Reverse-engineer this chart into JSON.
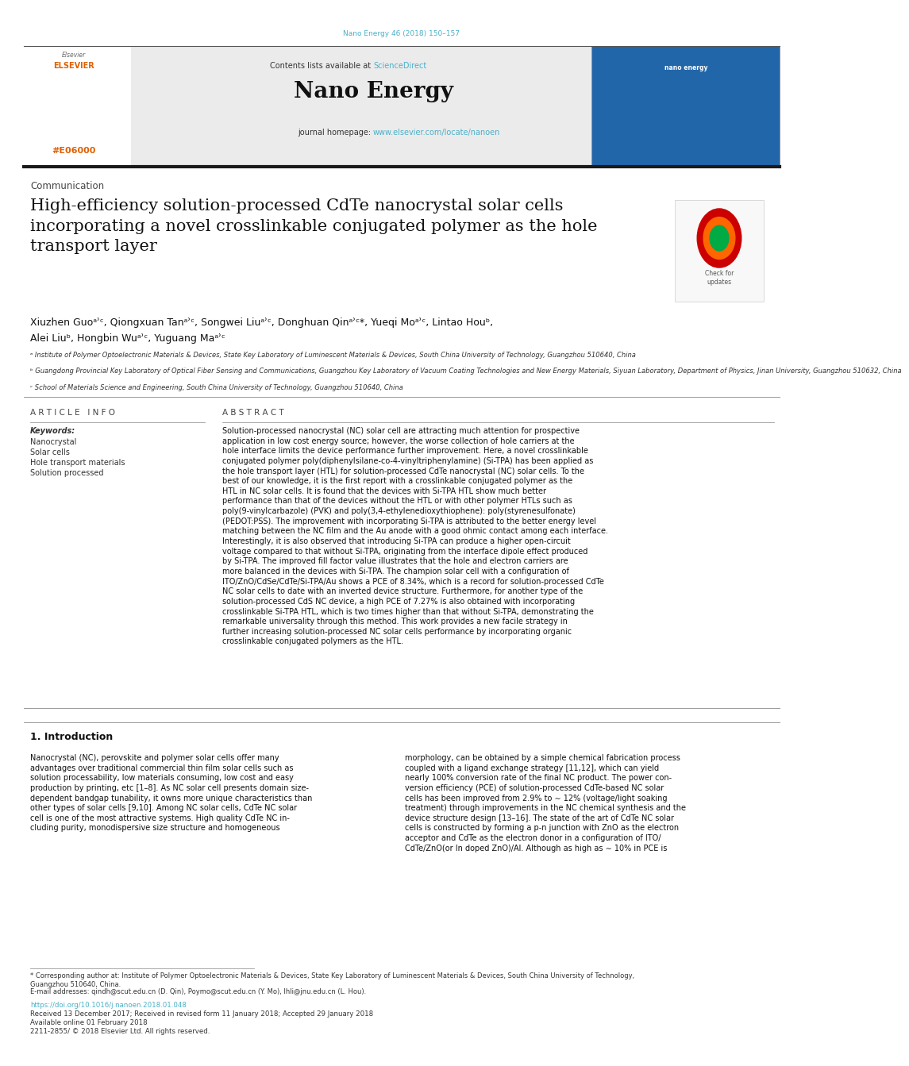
{
  "page_width": 9.92,
  "page_height": 13.23,
  "bg_color": "#ffffff",
  "header_citation": "Nano Energy 46 (2018) 150–157",
  "header_citation_color": "#4ab0c8",
  "journal_name": "Nano Energy",
  "contents_text": "Contents lists available at ",
  "sciencedirect_text": "ScienceDirect",
  "sciencedirect_color": "#4ab0c8",
  "journal_homepage_text": "journal homepage: ",
  "journal_url": "www.elsevier.com/locate/nanoen",
  "journal_url_color": "#4ab0c8",
  "elsevier_color": "#E06000",
  "section_label": "Communication",
  "title": "High-efficiency solution-processed CdTe nanocrystal solar cells\nincorporating a novel crosslinkable conjugated polymer as the hole\ntransport layer",
  "authors_line1": "Xiuzhen Guoᵃʾᶜ, Qiongxuan Tanᵃʾᶜ, Songwei Liuᵃʾᶜ, Donghuan Qinᵃʾᶜ*, Yueqi Moᵃʾᶜ, Lintao Houᵇ,",
  "authors_line2": "Alei Liuᵇ, Hongbin Wuᵃʾᶜ, Yuguang Maᵃʾᶜ",
  "affiliation_a": "ᵃ Institute of Polymer Optoelectronic Materials & Devices, State Key Laboratory of Luminescent Materials & Devices, South China University of Technology, Guangzhou 510640, China",
  "affiliation_b": "ᵇ Guangdong Provincial Key Laboratory of Optical Fiber Sensing and Communications, Guangzhou Key Laboratory of Vacuum Coating Technologies and New Energy Materials, Siyuan Laboratory, Department of Physics, Jinan University, Guangzhou 510632, China",
  "affiliation_c": "ᶜ School of Materials Science and Engineering, South China University of Technology, Guangzhou 510640, China",
  "article_info_title": "A R T I C L E   I N F O",
  "keywords_label": "Keywords:",
  "keywords": [
    "Nanocrystal",
    "Solar cells",
    "Hole transport materials",
    "Solution processed"
  ],
  "abstract_title": "A B S T R A C T",
  "abstract_text": "Solution-processed nanocrystal (NC) solar cell are attracting much attention for prospective application in low cost energy source; however, the worse collection of hole carriers at the hole interface limits the device performance further improvement. Here, a novel crosslinkable conjugated polymer poly(diphenylsilane-co-4-vinyltriphenylamine) (Si-TPA) has been applied as the hole transport layer (HTL) for solution-processed CdTe nanocrystal (NC) solar cells. To the best of our knowledge, it is the first report with a crosslinkable conjugated polymer as the HTL in NC solar cells. It is found that the devices with Si-TPA HTL show much better performance than that of the devices without the HTL or with other polymer HTLs such as poly(9-vinylcarbazole) (PVK) and poly(3,4-ethylenedioxythiophene): poly(styrenesulfonate) (PEDOT:PSS). The improvement with incorporating Si-TPA is attributed to the better energy level matching between the NC film and the Au anode with a good ohmic contact among each interface. Interestingly, it is also observed that introducing Si-TPA can produce a higher open-circuit voltage compared to that without Si-TPA, originating from the interface dipole effect produced by Si-TPA. The improved fill factor value illustrates that the hole and electron carriers are more balanced in the devices with Si-TPA. The champion solar cell with a configuration of ITO/ZnO/CdSe/CdTe/Si-TPA/Au shows a PCE of 8.34%, which is a record for solution-processed CdTe NC solar cells to date with an inverted device structure. Furthermore, for another type of the solution-processed CdS NC device, a high PCE of 7.27% is also obtained with incorporating crosslinkable Si-TPA HTL, which is two times higher than that without Si-TPA, demonstrating the remarkable universality through this method. This work provides a new facile strategy in further increasing solution-processed NC solar cells performance by incorporating organic crosslinkable conjugated polymers as the HTL.",
  "intro_title": "1. Introduction",
  "intro_text_left": "Nanocrystal (NC), perovskite and polymer solar cells offer many\nadvantages over traditional commercial thin film solar cells such as\nsolution processability, low materials consuming, low cost and easy\nproduction by printing, etc [1–8]. As NC solar cell presents domain size-\ndependent bandgap tunability, it owns more unique characteristics than\nother types of solar cells [9,10]. Among NC solar cells, CdTe NC solar\ncell is one of the most attractive systems. High quality CdTe NC in-\ncluding purity, monodispersive size structure and homogeneous",
  "intro_text_right": "morphology, can be obtained by a simple chemical fabrication process\ncoupled with a ligand exchange strategy [11,12], which can yield\nnearly 100% conversion rate of the final NC product. The power con-\nversion efficiency (PCE) of solution-processed CdTe-based NC solar\ncells has been improved from 2.9% to ∼ 12% (voltage/light soaking\ntreatment) through improvements in the NC chemical synthesis and the\ndevice structure design [13–16]. The state of the art of CdTe NC solar\ncells is constructed by forming a p-n junction with ZnO as the electron\nacceptor and CdTe as the electron donor in a configuration of ITO/\nCdTe/ZnO(or In doped ZnO)/Al. Although as high as ∼ 10% in PCE is",
  "footnote_star": "* Corresponding author at: Institute of Polymer Optoelectronic Materials & Devices, State Key Laboratory of Luminescent Materials & Devices, South China University of Technology,\nGuangzhou 510640, China.",
  "footnote_email": "E-mail addresses: qindh@scut.edu.cn (D. Qin), Poymo@scut.edu.cn (Y. Mo), lhli@jnu.edu.cn (L. Hou).",
  "doi_text": "https://doi.org/10.1016/j.nanoen.2018.01.048",
  "received_text": "Received 13 December 2017; Received in revised form 11 January 2018; Accepted 29 January 2018",
  "available_text": "Available online 01 February 2018",
  "issn_text": "2211-2855/ © 2018 Elsevier Ltd. All rights reserved.",
  "link_color": "#4ab0c8",
  "dark_line_color": "#1a1a1a",
  "thin_line_color": "#999999"
}
